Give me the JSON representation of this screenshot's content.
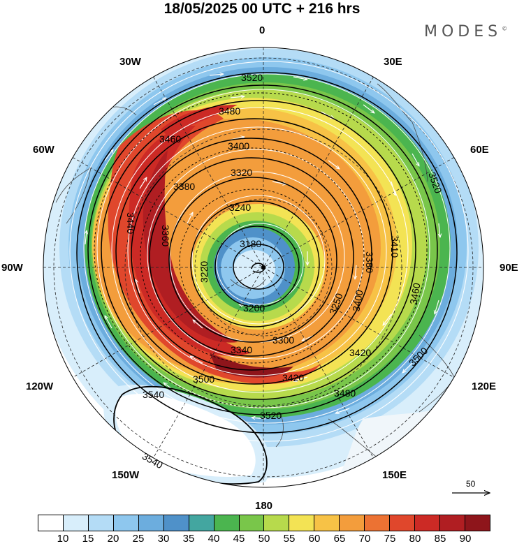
{
  "title": "18/05/2025  00 UTC  + 216 hrs",
  "brand": "MODES",
  "brand_mark": "©",
  "longitude_labels": {
    "n": "0",
    "ne30": "30E",
    "ne60": "60E",
    "e": "90E",
    "se120": "120E",
    "se150": "150E",
    "s": "180",
    "sw150": "150W",
    "sw120": "120W",
    "w": "90W",
    "nw60": "60W",
    "nw30": "30W"
  },
  "contour_labels": [
    "3520",
    "3480",
    "3460",
    "3400",
    "3380",
    "3320",
    "3240",
    "3180",
    "3220",
    "3200",
    "3300",
    "3340",
    "3360",
    "3440",
    "3420",
    "3500",
    "3540",
    "3380",
    "3410",
    "3250",
    "3460",
    "3400",
    "3420",
    "3480",
    "3500",
    "3520",
    "3520",
    "3540"
  ],
  "reference_vector": {
    "value": "50"
  },
  "colorbar": {
    "colors": [
      "#ffffff",
      "#d8eefb",
      "#b4dcf6",
      "#8ec7ee",
      "#6cadde",
      "#4f91c9",
      "#43a6a0",
      "#4bb54f",
      "#79c64a",
      "#b7da4c",
      "#f3e354",
      "#f7c246",
      "#f39d3c",
      "#ec7233",
      "#e0472c",
      "#cc2a25",
      "#b01e22",
      "#8e151b"
    ],
    "ticks": [
      "10",
      "15",
      "20",
      "25",
      "30",
      "35",
      "40",
      "45",
      "50",
      "55",
      "60",
      "65",
      "70",
      "75",
      "80",
      "85",
      "90"
    ]
  },
  "legend_colors": {
    "contour": "#000000",
    "wind_arrows": "#ffffff"
  }
}
